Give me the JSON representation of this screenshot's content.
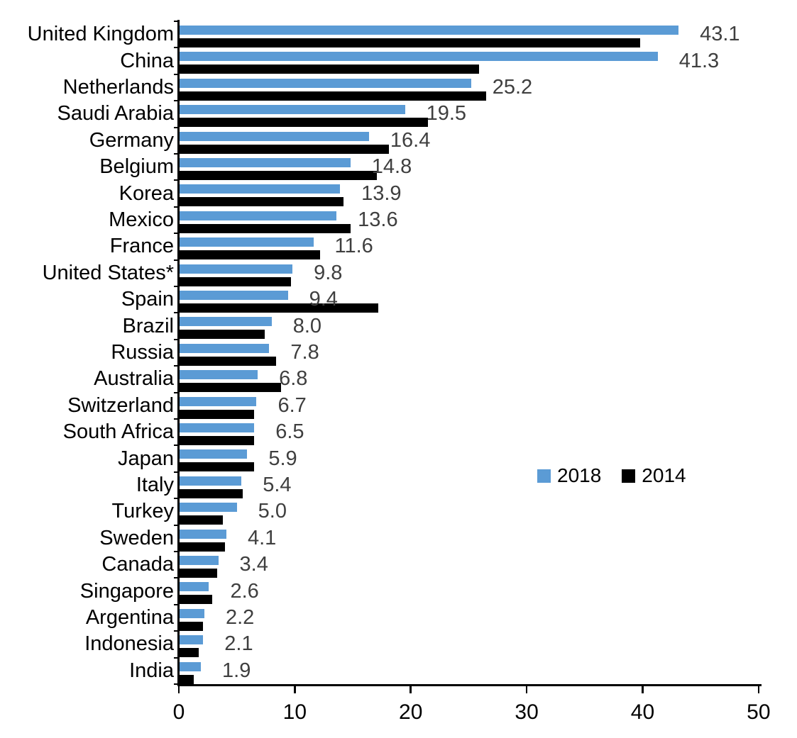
{
  "chart_data": {
    "type": "bar",
    "orientation": "horizontal",
    "title": "",
    "xlabel": "",
    "ylabel": "",
    "categories": [
      "United Kingdom",
      "China",
      "Netherlands",
      "Saudi Arabia",
      "Germany",
      "Belgium",
      "Korea",
      "Mexico",
      "France",
      "United States*",
      "Spain",
      "Brazil",
      "Russia",
      "Australia",
      "Switzerland",
      "South Africa",
      "Japan",
      "Italy",
      "Turkey",
      "Sweden",
      "Canada",
      "Singapore",
      "Argentina",
      "Indonesia",
      "India"
    ],
    "series": [
      {
        "name": "2018",
        "color": "#5B9BD5",
        "values": [
          43.1,
          41.3,
          25.2,
          19.5,
          16.4,
          14.8,
          13.9,
          13.6,
          11.6,
          9.8,
          9.4,
          8.0,
          7.8,
          6.8,
          6.7,
          6.5,
          5.9,
          5.4,
          5.0,
          4.1,
          3.4,
          2.6,
          2.2,
          2.1,
          1.9
        ],
        "value_labels": [
          "43.1",
          "41.3",
          "25.2",
          "19.5",
          "16.4",
          "14.8",
          "13.9",
          "13.6",
          "11.6",
          "9.8",
          "9.4",
          "8.0",
          "7.8",
          "6.8",
          "6.7",
          "6.5",
          "5.9",
          "5.4",
          "5.0",
          "4.1",
          "3.4",
          "2.6",
          "2.2",
          "2.1",
          "1.9"
        ]
      },
      {
        "name": "2014",
        "color": "#000000",
        "values": [
          39.8,
          25.9,
          26.5,
          21.5,
          18.1,
          17.1,
          14.2,
          14.8,
          12.2,
          9.7,
          17.2,
          7.4,
          8.4,
          8.8,
          6.5,
          6.5,
          6.5,
          5.5,
          3.8,
          4.0,
          3.3,
          2.9,
          2.1,
          1.7,
          1.3
        ]
      }
    ],
    "value_labels_shown_for_series": "2018",
    "xlim": [
      0,
      50
    ],
    "x_axis": {
      "ticks": [
        0,
        10,
        20,
        30,
        40,
        50
      ],
      "tick_labels": [
        "0",
        "10",
        "20",
        "30",
        "40",
        "50"
      ]
    },
    "grid": false,
    "legend_position": "middle-right"
  },
  "legend": {
    "items": [
      {
        "label": "2018",
        "color": "#5B9BD5"
      },
      {
        "label": "2014",
        "color": "#000000"
      }
    ]
  },
  "colors": {
    "series_2018": "#5B9BD5",
    "series_2014": "#000000",
    "value_label_text": "#3F3F3F",
    "axis": "#000000",
    "background": "#FFFFFF"
  }
}
